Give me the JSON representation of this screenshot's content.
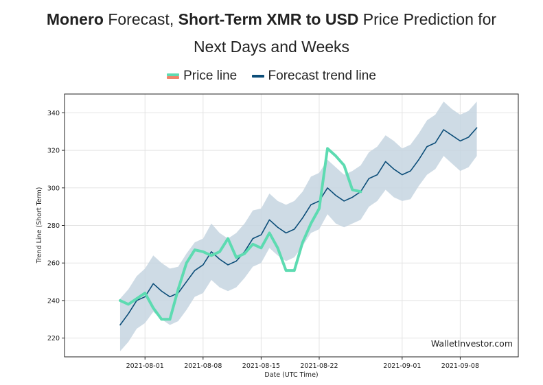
{
  "header": {
    "title_part1_bold": "Monero",
    "title_part2": " Forecast, ",
    "title_part3_bold": "Short-Term XMR to USD",
    "title_part4": " Price Prediction for",
    "title_line2": "Next Days and Weeks"
  },
  "legend": {
    "price_label": "Price line",
    "forecast_label": "Forecast trend line"
  },
  "colors": {
    "price_line": "#5ddbb1",
    "price_swatch_top": "#5ddbb1",
    "price_swatch_bottom": "#f0846a",
    "forecast_line": "#0b4d78",
    "band_fill": "#c5d5e0",
    "grid": "#e3e3e3"
  },
  "watermark": "WalletInvestor.com",
  "chart_data": {
    "type": "line",
    "title": "Monero Forecast, Short-Term XMR to USD Price Prediction for Next Days and Weeks",
    "xlabel": "Date (UTC Time)",
    "ylabel": "Trend Line (Short Term)",
    "x_unit": "days since 2021-08-01",
    "xlim": [
      -9.7,
      45.0
    ],
    "ylim": [
      210,
      350
    ],
    "grid": true,
    "legend_position": "top",
    "x_ticks": [
      {
        "value": 0,
        "label": "2021-08-01"
      },
      {
        "value": 7,
        "label": "2021-08-08"
      },
      {
        "value": 14,
        "label": "2021-08-15"
      },
      {
        "value": 21,
        "label": "2021-08-22"
      },
      {
        "value": 31,
        "label": "2021-09-01"
      },
      {
        "value": 38,
        "label": "2021-09-08"
      }
    ],
    "y_ticks": [
      {
        "value": 220,
        "label": "220"
      },
      {
        "value": 240,
        "label": "240"
      },
      {
        "value": 260,
        "label": "260"
      },
      {
        "value": 280,
        "label": "280"
      },
      {
        "value": 300,
        "label": "300"
      },
      {
        "value": 320,
        "label": "320"
      },
      {
        "value": 340,
        "label": "340"
      }
    ],
    "series": [
      {
        "name": "Price line",
        "x": [
          -3,
          -2,
          -1,
          0,
          1,
          2,
          3,
          4,
          5,
          6,
          7,
          8,
          9,
          10,
          11,
          12,
          13,
          14,
          15,
          16,
          17,
          18,
          19,
          20,
          21,
          22,
          23,
          24,
          25,
          26
        ],
        "y": [
          240,
          238,
          241,
          244,
          236,
          230,
          230,
          246,
          260,
          267,
          266,
          264,
          266,
          273,
          263,
          265,
          270,
          268,
          276,
          268,
          256,
          256,
          271,
          281,
          289,
          321,
          317,
          312,
          299,
          298
        ]
      },
      {
        "name": "Forecast trend line",
        "x": [
          -3,
          -2,
          -1,
          0,
          1,
          2,
          3,
          4,
          5,
          6,
          7,
          8,
          9,
          10,
          11,
          12,
          13,
          14,
          15,
          16,
          17,
          18,
          19,
          20,
          21,
          22,
          23,
          24,
          25,
          26,
          27,
          28,
          29,
          30,
          31,
          32,
          33,
          34,
          35,
          36,
          37,
          38,
          39,
          40
        ],
        "y": [
          227,
          233,
          240,
          242,
          249,
          245,
          242,
          244,
          250,
          256,
          259,
          266,
          262,
          259,
          261,
          266,
          273,
          275,
          283,
          279,
          276,
          278,
          284,
          291,
          293,
          300,
          296,
          293,
          295,
          298,
          305,
          307,
          314,
          310,
          307,
          309,
          315,
          322,
          324,
          331,
          328,
          325,
          327,
          332
        ]
      },
      {
        "name": "Forecast band upper",
        "x": [
          -3,
          -2,
          -1,
          0,
          1,
          2,
          3,
          4,
          5,
          6,
          7,
          8,
          9,
          10,
          11,
          12,
          13,
          14,
          15,
          16,
          17,
          18,
          19,
          20,
          21,
          22,
          23,
          24,
          25,
          26,
          27,
          28,
          29,
          30,
          31,
          32,
          33,
          34,
          35,
          36,
          37,
          38,
          39,
          40
        ],
        "y": [
          241,
          246,
          253,
          257,
          264,
          260,
          257,
          258,
          265,
          271,
          273,
          281,
          276,
          273,
          276,
          281,
          288,
          289,
          297,
          293,
          291,
          293,
          298,
          306,
          308,
          315,
          311,
          307,
          309,
          312,
          319,
          322,
          328,
          325,
          321,
          323,
          329,
          336,
          339,
          346,
          342,
          339,
          341,
          346
        ]
      },
      {
        "name": "Forecast band lower",
        "x": [
          -3,
          -2,
          -1,
          0,
          1,
          2,
          3,
          4,
          5,
          6,
          7,
          8,
          9,
          10,
          11,
          12,
          13,
          14,
          15,
          16,
          17,
          18,
          19,
          20,
          21,
          22,
          23,
          24,
          25,
          26,
          27,
          28,
          29,
          30,
          31,
          32,
          33,
          34,
          35,
          36,
          37,
          38,
          39,
          40
        ],
        "y": [
          213,
          218,
          225,
          228,
          234,
          230,
          227,
          229,
          235,
          242,
          244,
          251,
          247,
          245,
          247,
          252,
          258,
          260,
          268,
          264,
          261,
          263,
          269,
          276,
          278,
          286,
          281,
          279,
          281,
          283,
          290,
          293,
          299,
          295,
          293,
          294,
          301,
          307,
          310,
          317,
          313,
          309,
          311,
          317
        ]
      }
    ]
  }
}
